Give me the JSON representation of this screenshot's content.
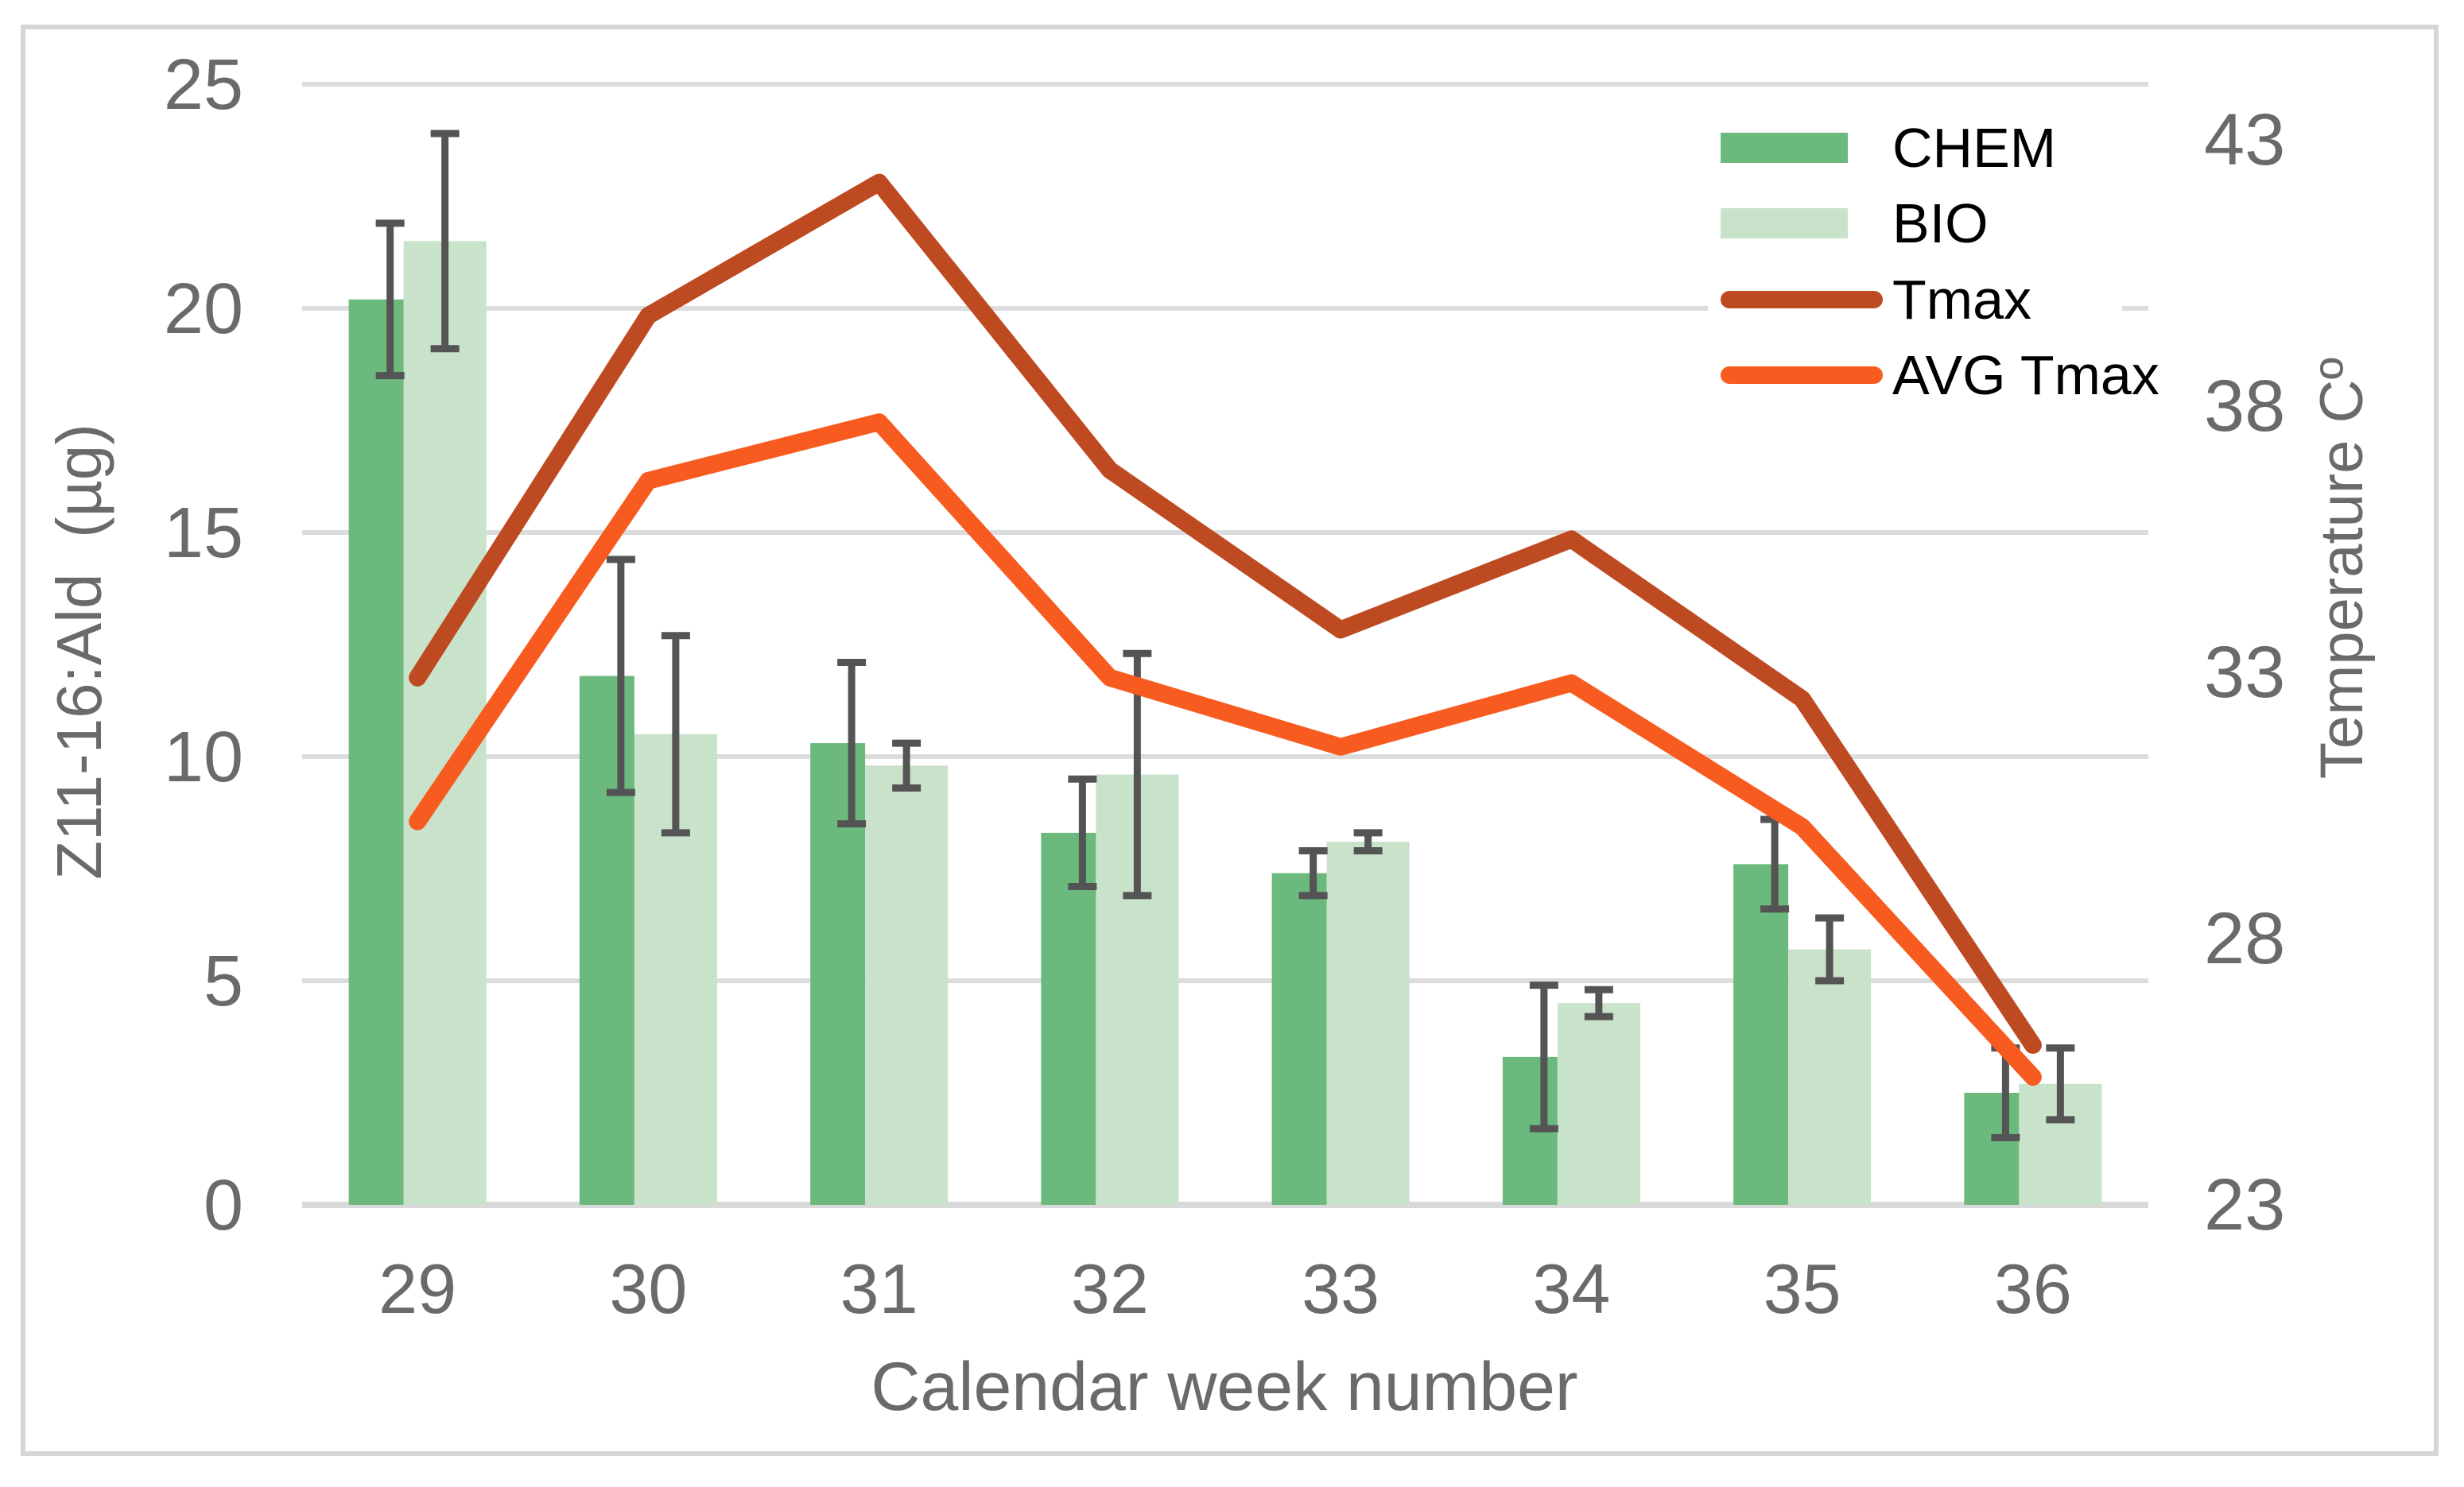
{
  "chart_data": {
    "type": "bar+line combo",
    "categories": [
      "29",
      "30",
      "31",
      "32",
      "33",
      "34",
      "35",
      "36"
    ],
    "xlabel": "Calendar week number",
    "left_axis": {
      "label": "Z11-16:Ald  (µg)",
      "ticks": [
        0,
        5,
        10,
        15,
        20,
        25
      ],
      "range": [
        0,
        25
      ]
    },
    "right_axis": {
      "label": "Temperature Cº",
      "ticks": [
        23,
        28,
        33,
        38,
        43
      ],
      "range": [
        23,
        43
      ]
    },
    "grid": "horizontal",
    "legend_position": "top-right",
    "series": [
      {
        "name": "CHEM",
        "type": "bar",
        "axis": "left",
        "color": "#6cb97e",
        "values": [
          20.2,
          11.8,
          10.3,
          8.3,
          7.4,
          3.3,
          7.6,
          2.5
        ],
        "errors": [
          1.7,
          2.6,
          1.8,
          1.2,
          0.5,
          1.6,
          1.0,
          1.0
        ]
      },
      {
        "name": "BIO",
        "type": "bar",
        "axis": "left",
        "color": "#c9e2ca",
        "values": [
          21.5,
          10.5,
          9.8,
          9.6,
          8.1,
          4.5,
          5.7,
          2.7
        ],
        "errors": [
          2.4,
          2.2,
          0.5,
          2.7,
          0.2,
          0.3,
          0.7,
          0.8
        ]
      },
      {
        "name": "Tmax",
        "type": "line",
        "axis": "right",
        "color": "#be4a22",
        "values": [
          32.9,
          39.7,
          42.2,
          36.8,
          33.8,
          35.5,
          32.5,
          26.0
        ]
      },
      {
        "name": "AVG Tmax",
        "type": "line",
        "axis": "right",
        "color": "#f75b20",
        "values": [
          30.2,
          36.6,
          37.7,
          32.9,
          31.6,
          32.8,
          30.1,
          25.4
        ]
      }
    ]
  },
  "colors": {
    "gridline": "#dcdcdc",
    "axis_line": "#d9d9d9",
    "axis_text": "#6a6a6a",
    "legend_text": "#000000",
    "error_bar": "#545454",
    "frame_border": "#d6d6d6",
    "background": "#ffffff"
  }
}
